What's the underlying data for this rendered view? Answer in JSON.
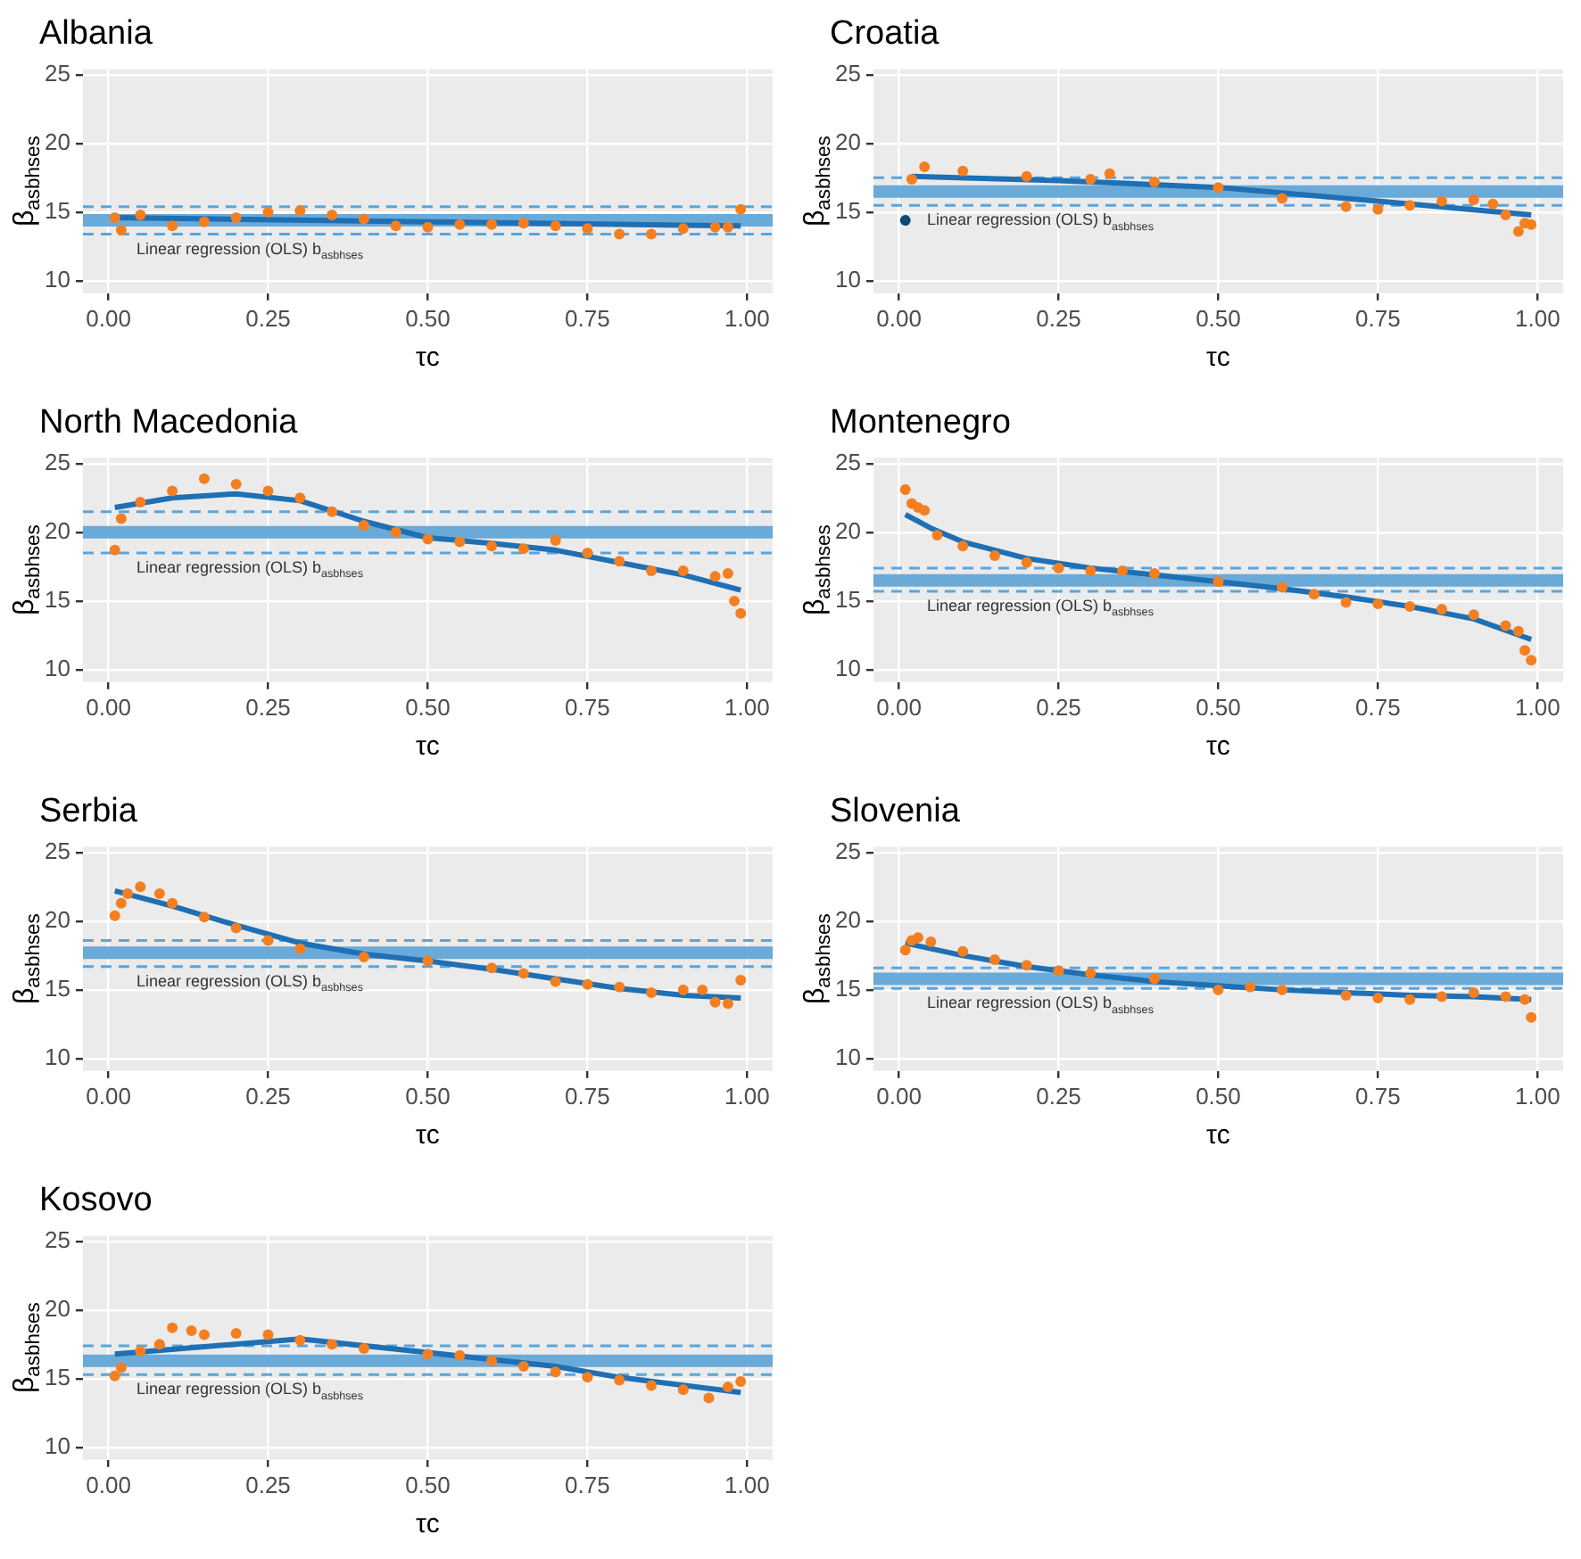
{
  "chart_data": [
    {
      "type": "scatter",
      "title": "Albania",
      "xlabel": "τc",
      "ylabel": "β$_{asbhses}$",
      "xlim": [
        -0.04,
        1.04
      ],
      "xticks": [
        {
          "value": 0,
          "label": "0.00"
        },
        {
          "value": 0.25,
          "label": "0.25"
        },
        {
          "value": 0.5,
          "label": "0.50"
        },
        {
          "value": 0.75,
          "label": "0.75"
        },
        {
          "value": 1,
          "label": "1.00"
        }
      ],
      "ylim": [
        9.1,
        25.4
      ],
      "yticks": [
        10,
        15,
        20,
        25
      ],
      "grid": true,
      "marker": "circle",
      "legend": false,
      "series": [
        {
          "type": "scatter",
          "color": "#f47f20",
          "x": [
            0.01,
            0.02,
            0.05,
            0.1,
            0.15,
            0.2,
            0.25,
            0.3,
            0.35,
            0.4,
            0.45,
            0.5,
            0.55,
            0.6,
            0.65,
            0.7,
            0.75,
            0.8,
            0.85,
            0.9,
            0.95,
            0.97,
            0.99
          ],
          "values": [
            14.6,
            13.7,
            14.8,
            14.0,
            14.3,
            14.6,
            15.0,
            15.1,
            14.8,
            14.5,
            14.0,
            13.9,
            14.1,
            14.1,
            14.2,
            14.0,
            13.8,
            13.4,
            13.4,
            13.8,
            13.9,
            13.9,
            15.2
          ]
        },
        {
          "type": "line",
          "color": "#1f6fb4",
          "marker": "none",
          "x": [
            0.01,
            0.5,
            0.99
          ],
          "values": [
            14.6,
            14.3,
            14.0
          ]
        }
      ],
      "ref_lines": [
        {
          "axis": "y",
          "value": 14.4,
          "label": "Linear regression (OLS) b$_{asbhses}$",
          "color": "#6aaad8",
          "line_style": "solid"
        },
        {
          "axis": "y",
          "value": 15.4,
          "color": "#5aa5dc",
          "line_style": "dashed"
        },
        {
          "axis": "y",
          "value": 13.4,
          "color": "#5aa5dc",
          "line_style": "dashed"
        }
      ]
    },
    {
      "type": "scatter",
      "title": "Croatia",
      "xlabel": "τc",
      "ylabel": "β$_{asbhses}$",
      "xlim": [
        -0.04,
        1.04
      ],
      "xticks": [
        {
          "value": 0,
          "label": "0.00"
        },
        {
          "value": 0.25,
          "label": "0.25"
        },
        {
          "value": 0.5,
          "label": "0.50"
        },
        {
          "value": 0.75,
          "label": "0.75"
        },
        {
          "value": 1,
          "label": "1.00"
        }
      ],
      "ylim": [
        9.1,
        25.4
      ],
      "yticks": [
        10,
        15,
        20,
        25
      ],
      "grid": true,
      "marker": "circle",
      "legend": false,
      "series": [
        {
          "type": "scatter",
          "color": "#f47f20",
          "x": [
            0.02,
            0.04,
            0.1,
            0.2,
            0.3,
            0.33,
            0.4,
            0.5,
            0.6,
            0.7,
            0.75,
            0.8,
            0.85,
            0.9,
            0.93,
            0.95,
            0.97,
            0.98,
            0.99
          ],
          "values": [
            17.4,
            18.3,
            18.0,
            17.6,
            17.4,
            17.8,
            17.2,
            16.8,
            16.0,
            15.4,
            15.2,
            15.5,
            15.8,
            15.9,
            15.6,
            14.8,
            13.6,
            14.2,
            14.1
          ]
        },
        {
          "type": "scatter",
          "color": "#0b4a73",
          "x": [
            0.01
          ],
          "values": [
            14.4
          ]
        },
        {
          "type": "line",
          "color": "#1f6fb4",
          "marker": "none",
          "x": [
            0.02,
            0.25,
            0.5,
            0.75,
            0.99
          ],
          "values": [
            17.6,
            17.3,
            16.8,
            15.8,
            14.8
          ]
        }
      ],
      "ref_lines": [
        {
          "axis": "y",
          "value": 16.5,
          "label": "Linear regression (OLS) b$_{asbhses}$",
          "color": "#6aaad8",
          "line_style": "solid"
        },
        {
          "axis": "y",
          "value": 17.5,
          "color": "#5aa5dc",
          "line_style": "dashed"
        },
        {
          "axis": "y",
          "value": 15.5,
          "color": "#5aa5dc",
          "line_style": "dashed"
        }
      ]
    },
    {
      "type": "scatter",
      "title": "North Macedonia",
      "xlabel": "τc",
      "ylabel": "β$_{asbhses}$",
      "xlim": [
        -0.04,
        1.04
      ],
      "xticks": [
        {
          "value": 0,
          "label": "0.00"
        },
        {
          "value": 0.25,
          "label": "0.25"
        },
        {
          "value": 0.5,
          "label": "0.50"
        },
        {
          "value": 0.75,
          "label": "0.75"
        },
        {
          "value": 1,
          "label": "1.00"
        }
      ],
      "ylim": [
        9.1,
        25.4
      ],
      "yticks": [
        10,
        15,
        20,
        25
      ],
      "grid": true,
      "marker": "circle",
      "legend": false,
      "series": [
        {
          "type": "scatter",
          "color": "#f47f20",
          "x": [
            0.01,
            0.02,
            0.05,
            0.1,
            0.15,
            0.2,
            0.25,
            0.3,
            0.35,
            0.4,
            0.45,
            0.5,
            0.55,
            0.6,
            0.65,
            0.7,
            0.75,
            0.8,
            0.85,
            0.9,
            0.95,
            0.97,
            0.98,
            0.99
          ],
          "values": [
            18.7,
            21.0,
            22.2,
            23.0,
            23.9,
            23.5,
            23.0,
            22.5,
            21.5,
            20.5,
            20.0,
            19.5,
            19.3,
            19.0,
            18.8,
            19.4,
            18.5,
            17.9,
            17.2,
            17.2,
            16.8,
            17.0,
            15.0,
            14.1
          ]
        },
        {
          "type": "line",
          "color": "#1f6fb4",
          "marker": "none",
          "x": [
            0.01,
            0.1,
            0.2,
            0.3,
            0.4,
            0.5,
            0.6,
            0.7,
            0.8,
            0.9,
            0.99
          ],
          "values": [
            21.8,
            22.5,
            22.8,
            22.3,
            20.8,
            19.6,
            19.2,
            18.7,
            17.8,
            16.9,
            15.8
          ]
        }
      ],
      "ref_lines": [
        {
          "axis": "y",
          "value": 20.0,
          "label": "Linear regression (OLS) b$_{asbhses}$",
          "color": "#6aaad8",
          "line_style": "solid"
        },
        {
          "axis": "y",
          "value": 21.5,
          "color": "#5aa5dc",
          "line_style": "dashed"
        },
        {
          "axis": "y",
          "value": 18.5,
          "color": "#5aa5dc",
          "line_style": "dashed"
        }
      ]
    },
    {
      "type": "scatter",
      "title": "Montenegro",
      "xlabel": "τc",
      "ylabel": "β$_{asbhses}$",
      "xlim": [
        -0.04,
        1.04
      ],
      "xticks": [
        {
          "value": 0,
          "label": "0.00"
        },
        {
          "value": 0.25,
          "label": "0.25"
        },
        {
          "value": 0.5,
          "label": "0.50"
        },
        {
          "value": 0.75,
          "label": "0.75"
        },
        {
          "value": 1,
          "label": "1.00"
        }
      ],
      "ylim": [
        9.1,
        25.4
      ],
      "yticks": [
        10,
        15,
        20,
        25
      ],
      "grid": true,
      "marker": "circle",
      "legend": false,
      "series": [
        {
          "type": "scatter",
          "color": "#f47f20",
          "x": [
            0.01,
            0.02,
            0.03,
            0.04,
            0.06,
            0.1,
            0.15,
            0.2,
            0.25,
            0.3,
            0.35,
            0.4,
            0.5,
            0.6,
            0.65,
            0.7,
            0.75,
            0.8,
            0.85,
            0.9,
            0.95,
            0.97,
            0.98,
            0.99
          ],
          "values": [
            23.1,
            22.1,
            21.8,
            21.6,
            19.8,
            19.0,
            18.3,
            17.8,
            17.4,
            17.2,
            17.2,
            17.0,
            16.4,
            16.0,
            15.5,
            14.9,
            14.8,
            14.6,
            14.4,
            14.0,
            13.2,
            12.8,
            11.4,
            10.7
          ]
        },
        {
          "type": "line",
          "color": "#1f6fb4",
          "marker": "none",
          "x": [
            0.01,
            0.05,
            0.1,
            0.2,
            0.3,
            0.4,
            0.5,
            0.6,
            0.7,
            0.8,
            0.9,
            0.99
          ],
          "values": [
            21.3,
            20.3,
            19.3,
            18.1,
            17.4,
            16.9,
            16.4,
            15.9,
            15.3,
            14.6,
            13.7,
            12.2
          ]
        }
      ],
      "ref_lines": [
        {
          "axis": "y",
          "value": 16.5,
          "label": "Linear regression (OLS) b$_{asbhses}$",
          "color": "#6aaad8",
          "line_style": "solid"
        },
        {
          "axis": "y",
          "value": 17.4,
          "color": "#5aa5dc",
          "line_style": "dashed"
        },
        {
          "axis": "y",
          "value": 15.7,
          "color": "#5aa5dc",
          "line_style": "dashed"
        }
      ]
    },
    {
      "type": "scatter",
      "title": "Serbia",
      "xlabel": "τc",
      "ylabel": "β$_{asbhses}$",
      "xlim": [
        -0.04,
        1.04
      ],
      "xticks": [
        {
          "value": 0,
          "label": "0.00"
        },
        {
          "value": 0.25,
          "label": "0.25"
        },
        {
          "value": 0.5,
          "label": "0.50"
        },
        {
          "value": 0.75,
          "label": "0.75"
        },
        {
          "value": 1,
          "label": "1.00"
        }
      ],
      "ylim": [
        9.1,
        25.4
      ],
      "yticks": [
        10,
        15,
        20,
        25
      ],
      "grid": true,
      "marker": "circle",
      "legend": false,
      "series": [
        {
          "type": "scatter",
          "color": "#f47f20",
          "x": [
            0.01,
            0.02,
            0.03,
            0.05,
            0.08,
            0.1,
            0.15,
            0.2,
            0.25,
            0.3,
            0.4,
            0.5,
            0.6,
            0.65,
            0.7,
            0.75,
            0.8,
            0.85,
            0.9,
            0.93,
            0.95,
            0.97,
            0.99
          ],
          "values": [
            20.4,
            21.3,
            22.0,
            22.5,
            22.0,
            21.3,
            20.3,
            19.5,
            18.6,
            18.0,
            17.4,
            17.1,
            16.6,
            16.2,
            15.6,
            15.4,
            15.2,
            14.8,
            15.0,
            15.0,
            14.1,
            14.0,
            15.7
          ]
        },
        {
          "type": "line",
          "color": "#1f6fb4",
          "marker": "none",
          "x": [
            0.01,
            0.1,
            0.2,
            0.3,
            0.4,
            0.5,
            0.6,
            0.7,
            0.8,
            0.9,
            0.99
          ],
          "values": [
            22.2,
            21.1,
            19.7,
            18.4,
            17.6,
            17.1,
            16.5,
            15.8,
            15.1,
            14.6,
            14.4
          ]
        }
      ],
      "ref_lines": [
        {
          "axis": "y",
          "value": 17.7,
          "label": "Linear regression (OLS) b$_{asbhses}$",
          "color": "#6aaad8",
          "line_style": "solid"
        },
        {
          "axis": "y",
          "value": 18.6,
          "color": "#5aa5dc",
          "line_style": "dashed"
        },
        {
          "axis": "y",
          "value": 16.7,
          "color": "#5aa5dc",
          "line_style": "dashed"
        }
      ]
    },
    {
      "type": "scatter",
      "title": "Slovenia",
      "xlabel": "τc",
      "ylabel": "β$_{asbhses}$",
      "xlim": [
        -0.04,
        1.04
      ],
      "xticks": [
        {
          "value": 0,
          "label": "0.00"
        },
        {
          "value": 0.25,
          "label": "0.25"
        },
        {
          "value": 0.5,
          "label": "0.50"
        },
        {
          "value": 0.75,
          "label": "0.75"
        },
        {
          "value": 1,
          "label": "1.00"
        }
      ],
      "ylim": [
        9.1,
        25.4
      ],
      "yticks": [
        10,
        15,
        20,
        25
      ],
      "grid": true,
      "marker": "circle",
      "legend": false,
      "series": [
        {
          "type": "scatter",
          "color": "#f47f20",
          "x": [
            0.01,
            0.02,
            0.03,
            0.05,
            0.1,
            0.15,
            0.2,
            0.25,
            0.3,
            0.4,
            0.5,
            0.55,
            0.6,
            0.7,
            0.75,
            0.8,
            0.85,
            0.9,
            0.95,
            0.98,
            0.99
          ],
          "values": [
            17.9,
            18.6,
            18.8,
            18.5,
            17.8,
            17.2,
            16.8,
            16.4,
            16.2,
            15.8,
            15.0,
            15.2,
            15.0,
            14.6,
            14.4,
            14.3,
            14.5,
            14.8,
            14.5,
            14.3,
            13.0
          ]
        },
        {
          "type": "line",
          "color": "#1f6fb4",
          "marker": "none",
          "x": [
            0.01,
            0.1,
            0.2,
            0.3,
            0.4,
            0.5,
            0.6,
            0.7,
            0.8,
            0.9,
            0.99
          ],
          "values": [
            18.4,
            17.5,
            16.7,
            16.1,
            15.6,
            15.3,
            15.0,
            14.8,
            14.6,
            14.5,
            14.3
          ]
        }
      ],
      "ref_lines": [
        {
          "axis": "y",
          "value": 15.8,
          "label": "Linear regression (OLS) b$_{asbhses}$",
          "color": "#6aaad8",
          "line_style": "solid"
        },
        {
          "axis": "y",
          "value": 16.6,
          "color": "#5aa5dc",
          "line_style": "dashed"
        },
        {
          "axis": "y",
          "value": 15.1,
          "color": "#5aa5dc",
          "line_style": "dashed"
        }
      ]
    },
    {
      "type": "scatter",
      "title": "Kosovo",
      "xlabel": "τc",
      "ylabel": "β$_{asbhses}$",
      "xlim": [
        -0.04,
        1.04
      ],
      "xticks": [
        {
          "value": 0,
          "label": "0.00"
        },
        {
          "value": 0.25,
          "label": "0.25"
        },
        {
          "value": 0.5,
          "label": "0.50"
        },
        {
          "value": 0.75,
          "label": "0.75"
        },
        {
          "value": 1,
          "label": "1.00"
        }
      ],
      "ylim": [
        9.1,
        25.4
      ],
      "yticks": [
        10,
        15,
        20,
        25
      ],
      "grid": true,
      "marker": "circle",
      "legend": false,
      "series": [
        {
          "type": "scatter",
          "color": "#f47f20",
          "x": [
            0.01,
            0.02,
            0.05,
            0.08,
            0.1,
            0.13,
            0.15,
            0.2,
            0.25,
            0.3,
            0.35,
            0.4,
            0.5,
            0.55,
            0.6,
            0.65,
            0.7,
            0.75,
            0.8,
            0.85,
            0.9,
            0.94,
            0.97,
            0.99
          ],
          "values": [
            15.2,
            15.8,
            17.0,
            17.5,
            18.7,
            18.5,
            18.2,
            18.3,
            18.2,
            17.8,
            17.5,
            17.2,
            16.8,
            16.7,
            16.3,
            15.9,
            15.5,
            15.1,
            14.9,
            14.5,
            14.2,
            13.6,
            14.4,
            14.8
          ]
        },
        {
          "type": "line",
          "color": "#1f6fb4",
          "marker": "none",
          "x": [
            0.01,
            0.3,
            0.5,
            0.7,
            0.8,
            0.99
          ],
          "values": [
            16.8,
            17.9,
            16.9,
            15.9,
            15.1,
            14.0
          ]
        }
      ],
      "ref_lines": [
        {
          "axis": "y",
          "value": 16.3,
          "label": "Linear regression (OLS) b$_{asbhses}$",
          "color": "#6aaad8",
          "line_style": "solid"
        },
        {
          "axis": "y",
          "value": 17.4,
          "color": "#5aa5dc",
          "line_style": "dashed"
        },
        {
          "axis": "y",
          "value": 15.3,
          "color": "#5aa5dc",
          "line_style": "dashed"
        }
      ]
    }
  ]
}
